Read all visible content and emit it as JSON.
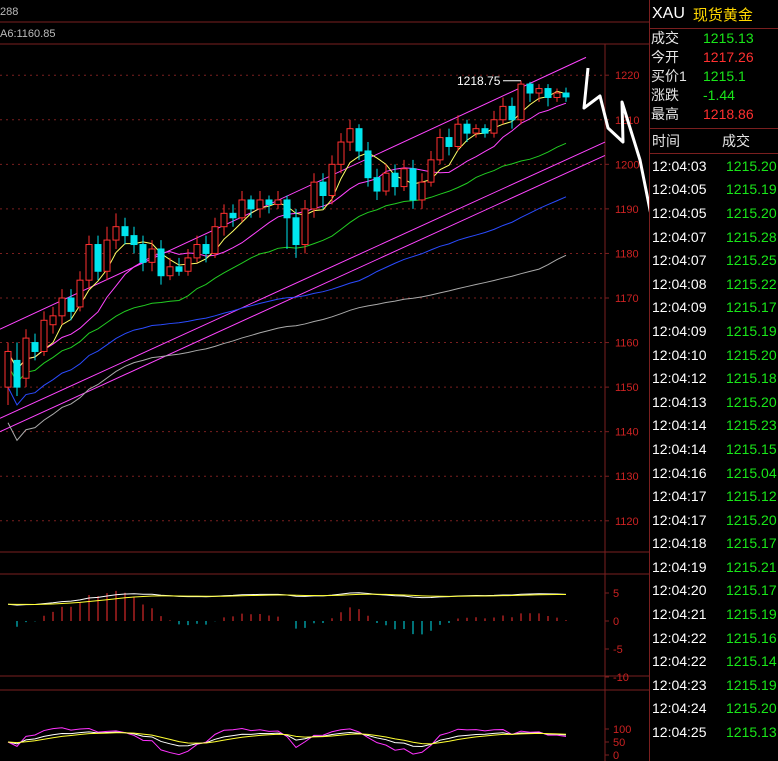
{
  "header": {
    "code_fragment": "288",
    "ma_label": "A6:1160.85"
  },
  "quote": {
    "symbol": "XAU",
    "name": "现货黄金",
    "rows": [
      {
        "label": "成交",
        "value": "1215.13",
        "color": "#19e619"
      },
      {
        "label": "今开",
        "value": "1217.26",
        "color": "#ff3030"
      },
      {
        "label": "买价1",
        "value": "1215.1",
        "color": "#19e619"
      },
      {
        "label": "涨跌",
        "value": "-1.44",
        "color": "#19e619"
      },
      {
        "label": "最高",
        "value": "1218.86",
        "color": "#ff3030"
      }
    ],
    "ticks_header": {
      "time": "时间",
      "trade": "成交"
    },
    "ticks": [
      {
        "time": "12:04:03",
        "price": "1215.20"
      },
      {
        "time": "12:04:05",
        "price": "1215.19"
      },
      {
        "time": "12:04:05",
        "price": "1215.20"
      },
      {
        "time": "12:04:07",
        "price": "1215.28"
      },
      {
        "time": "12:04:07",
        "price": "1215.25"
      },
      {
        "time": "12:04:08",
        "price": "1215.22"
      },
      {
        "time": "12:04:09",
        "price": "1215.17"
      },
      {
        "time": "12:04:09",
        "price": "1215.19"
      },
      {
        "time": "12:04:10",
        "price": "1215.20"
      },
      {
        "time": "12:04:12",
        "price": "1215.18"
      },
      {
        "time": "12:04:13",
        "price": "1215.20"
      },
      {
        "time": "12:04:14",
        "price": "1215.23"
      },
      {
        "time": "12:04:14",
        "price": "1215.15"
      },
      {
        "time": "12:04:16",
        "price": "1215.04"
      },
      {
        "time": "12:04:17",
        "price": "1215.12"
      },
      {
        "time": "12:04:17",
        "price": "1215.20"
      },
      {
        "time": "12:04:18",
        "price": "1215.17"
      },
      {
        "time": "12:04:19",
        "price": "1215.21"
      },
      {
        "time": "12:04:20",
        "price": "1215.17"
      },
      {
        "time": "12:04:21",
        "price": "1215.19"
      },
      {
        "time": "12:04:22",
        "price": "1215.16"
      },
      {
        "time": "12:04:22",
        "price": "1215.14"
      },
      {
        "time": "12:04:23",
        "price": "1215.19"
      },
      {
        "time": "12:04:24",
        "price": "1215.20"
      },
      {
        "time": "12:04:25",
        "price": "1215.13"
      }
    ]
  },
  "chart_data": {
    "type": "candlestick",
    "ylim": [
      1113,
      1227
    ],
    "y_ticks": [
      1220,
      1210,
      1200,
      1190,
      1180,
      1170,
      1160,
      1150,
      1140,
      1130,
      1120
    ],
    "high_label": "1218.75",
    "colors": {
      "up": "#ff3030",
      "down": "#00e5ee",
      "ma_fast": "#ffff66",
      "ma_mid": "#ff44ff",
      "ma_slow": "#22cc22",
      "ma_long": "#2a4bff",
      "ma_xlong": "#aaaaaa",
      "channel": "#ff44ff"
    },
    "candles": [
      [
        1150.0,
        1158.0,
        1146.0,
        1160.0
      ],
      [
        1156.0,
        1150.0,
        1148.0,
        1160.0
      ],
      [
        1152.0,
        1161.0,
        1150.0,
        1163.0
      ],
      [
        1160.0,
        1158.0,
        1156.0,
        1162.0
      ],
      [
        1158.0,
        1165.0,
        1157.0,
        1167.0
      ],
      [
        1164.0,
        1166.0,
        1162.0,
        1168.0
      ],
      [
        1166.0,
        1170.0,
        1164.0,
        1172.0
      ],
      [
        1170.0,
        1167.0,
        1165.0,
        1172.0
      ],
      [
        1168.0,
        1174.0,
        1167.0,
        1176.0
      ],
      [
        1174.0,
        1182.0,
        1172.0,
        1184.0
      ],
      [
        1182.0,
        1176.0,
        1174.0,
        1184.0
      ],
      [
        1176.0,
        1183.0,
        1174.0,
        1186.0
      ],
      [
        1183.0,
        1186.0,
        1181.0,
        1189.0
      ],
      [
        1186.0,
        1184.0,
        1182.0,
        1188.0
      ],
      [
        1184.0,
        1182.0,
        1180.0,
        1186.0
      ],
      [
        1182.0,
        1178.0,
        1176.0,
        1184.0
      ],
      [
        1178.0,
        1181.0,
        1176.0,
        1183.0
      ],
      [
        1181.0,
        1175.0,
        1173.0,
        1183.0
      ],
      [
        1175.0,
        1177.0,
        1174.0,
        1179.0
      ],
      [
        1177.0,
        1176.0,
        1175.0,
        1179.0
      ],
      [
        1176.0,
        1179.0,
        1175.0,
        1181.0
      ],
      [
        1179.0,
        1182.0,
        1178.0,
        1184.0
      ],
      [
        1182.0,
        1180.0,
        1178.0,
        1184.0
      ],
      [
        1180.0,
        1186.0,
        1179.0,
        1188.0
      ],
      [
        1186.0,
        1189.0,
        1184.0,
        1191.0
      ],
      [
        1189.0,
        1188.0,
        1186.0,
        1191.0
      ],
      [
        1188.0,
        1192.0,
        1187.0,
        1194.0
      ],
      [
        1192.0,
        1190.0,
        1188.0,
        1193.0
      ],
      [
        1190.0,
        1192.0,
        1188.0,
        1194.0
      ],
      [
        1192.0,
        1191.0,
        1189.0,
        1193.0
      ],
      [
        1191.0,
        1192.0,
        1190.0,
        1194.0
      ],
      [
        1192.0,
        1188.0,
        1181.0,
        1193.0
      ],
      [
        1188.0,
        1182.0,
        1179.0,
        1190.0
      ],
      [
        1182.0,
        1190.0,
        1180.0,
        1192.0
      ],
      [
        1190.0,
        1196.0,
        1188.0,
        1198.0
      ],
      [
        1196.0,
        1193.0,
        1190.0,
        1198.0
      ],
      [
        1193.0,
        1200.0,
        1191.0,
        1202.0
      ],
      [
        1200.0,
        1205.0,
        1198.0,
        1207.0
      ],
      [
        1205.0,
        1208.0,
        1203.0,
        1210.0
      ],
      [
        1208.0,
        1203.0,
        1201.0,
        1209.0
      ],
      [
        1203.0,
        1197.0,
        1195.0,
        1205.0
      ],
      [
        1197.0,
        1194.0,
        1192.0,
        1199.0
      ],
      [
        1194.0,
        1198.0,
        1193.0,
        1200.0
      ],
      [
        1198.0,
        1195.0,
        1193.0,
        1200.0
      ],
      [
        1195.0,
        1199.0,
        1194.0,
        1201.0
      ],
      [
        1199.0,
        1192.0,
        1190.0,
        1201.0
      ],
      [
        1192.0,
        1196.0,
        1190.0,
        1198.0
      ],
      [
        1196.0,
        1201.0,
        1195.0,
        1203.0
      ],
      [
        1201.0,
        1206.0,
        1200.0,
        1208.0
      ],
      [
        1206.0,
        1204.0,
        1202.0,
        1208.0
      ],
      [
        1204.0,
        1209.0,
        1203.0,
        1211.0
      ],
      [
        1209.0,
        1207.0,
        1205.0,
        1210.0
      ],
      [
        1207.0,
        1208.0,
        1206.0,
        1209.0
      ],
      [
        1208.0,
        1207.0,
        1206.0,
        1209.0
      ],
      [
        1207.0,
        1210.0,
        1206.0,
        1212.0
      ],
      [
        1210.0,
        1213.0,
        1209.0,
        1215.0
      ],
      [
        1213.0,
        1210.0,
        1208.0,
        1215.0
      ],
      [
        1210.0,
        1218.0,
        1209.0,
        1218.75
      ],
      [
        1218.0,
        1216.0,
        1214.0,
        1218.5
      ],
      [
        1216.0,
        1217.0,
        1214.0,
        1218.0
      ],
      [
        1217.0,
        1215.0,
        1213.0,
        1218.0
      ],
      [
        1215.0,
        1216.0,
        1214.0,
        1217.0
      ],
      [
        1216.0,
        1215.13,
        1214.0,
        1217.2
      ]
    ],
    "macd_panel": {
      "y_ticks": [
        5,
        0,
        -5,
        -10
      ]
    },
    "kdj_panel": {
      "y_ticks": [
        100,
        50,
        0
      ]
    }
  }
}
